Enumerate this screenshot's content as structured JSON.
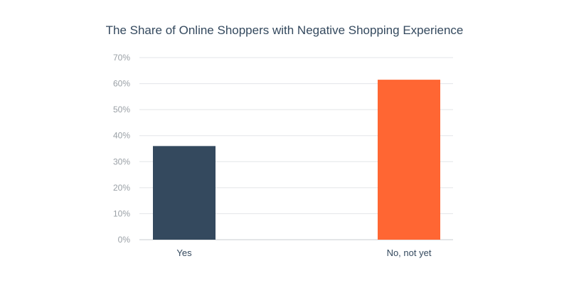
{
  "chart_data": {
    "type": "bar",
    "title": "The Share of Online Shoppers with Negative Shopping Experience",
    "categories": [
      "Yes",
      "No, not yet"
    ],
    "values": [
      36,
      61.5
    ],
    "bar_colors": [
      "#34495e",
      "#ff6633"
    ],
    "ylim": [
      0,
      70
    ],
    "yticks": [
      "0%",
      "10%",
      "20%",
      "30%",
      "40%",
      "50%",
      "60%",
      "70%"
    ],
    "grid": true,
    "xlabel": "",
    "ylabel": ""
  }
}
